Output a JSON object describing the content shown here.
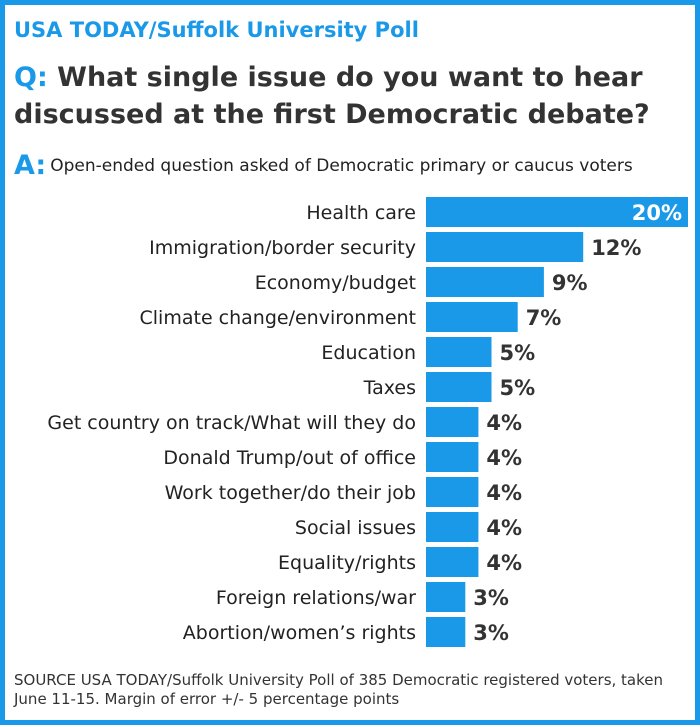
{
  "header": {
    "source_title": "USA TODAY/Suffolk University Poll",
    "question_prefix": "Q:",
    "question": "What single issue do you want to hear discussed at the first Democratic debate?",
    "answer_prefix": "A:",
    "answer": "Open-ended question asked of Democratic primary or caucus voters"
  },
  "footnote": "SOURCE USA TODAY/Suffolk University Poll of 385 Democratic registered voters, taken June 11-15. Margin of error +/- 5 percentage points",
  "colors": {
    "accent": "#1a99e8",
    "bar": "#1a99e8",
    "text": "#333333"
  },
  "chart_data": {
    "type": "bar",
    "orientation": "horizontal",
    "categories": [
      "Health care",
      "Immigration/border security",
      "Economy/budget",
      "Climate change/environment",
      "Education",
      "Taxes",
      "Get country on track/What will they do",
      "Donald Trump/out of office",
      "Work together/do their job",
      "Social issues",
      "Equality/rights",
      "Foreign relations/war",
      "Abortion/women’s rights"
    ],
    "values": [
      20,
      12,
      9,
      7,
      5,
      5,
      4,
      4,
      4,
      4,
      4,
      3,
      3
    ],
    "value_labels": [
      "20%",
      "12%",
      "9%",
      "7%",
      "5%",
      "5%",
      "4%",
      "4%",
      "4%",
      "4%",
      "4%",
      "3%",
      "3%"
    ],
    "unit": "%",
    "grid": false
  }
}
